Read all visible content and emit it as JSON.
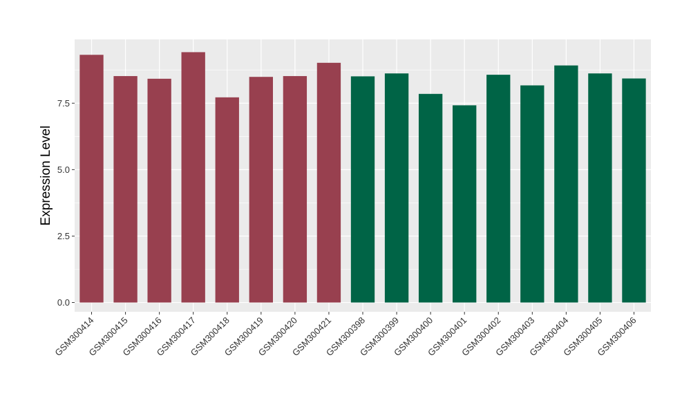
{
  "chart_data": {
    "type": "bar",
    "title": "",
    "xlabel": "",
    "ylabel": "Expression Level",
    "ylim": [
      -0.35,
      9.9
    ],
    "yticks": [
      0.0,
      2.5,
      5.0,
      7.5
    ],
    "ytick_labels": [
      "0.0",
      "2.5",
      "5.0",
      "7.5"
    ],
    "grid": true,
    "legend": "none",
    "colors": {
      "panel": "#EBEBEB",
      "grid": "#FFFFFF",
      "tick": "#333333"
    },
    "categories": [
      "GSM300414",
      "GSM300415",
      "GSM300416",
      "GSM300417",
      "GSM300418",
      "GSM300419",
      "GSM300420",
      "GSM300421",
      "GSM300398",
      "GSM300399",
      "GSM300400",
      "GSM300401",
      "GSM300402",
      "GSM300403",
      "GSM300404",
      "GSM300405",
      "GSM300406"
    ],
    "values": [
      9.32,
      8.52,
      8.42,
      9.42,
      7.72,
      8.49,
      8.52,
      9.02,
      8.51,
      8.62,
      7.85,
      7.42,
      8.57,
      8.17,
      8.92,
      8.62,
      8.43
    ],
    "bar_colors": [
      "#98404F",
      "#98404F",
      "#98404F",
      "#98404F",
      "#98404F",
      "#98404F",
      "#98404F",
      "#98404F",
      "#006446",
      "#006446",
      "#006446",
      "#006446",
      "#006446",
      "#006446",
      "#006446",
      "#006446",
      "#006446"
    ]
  }
}
